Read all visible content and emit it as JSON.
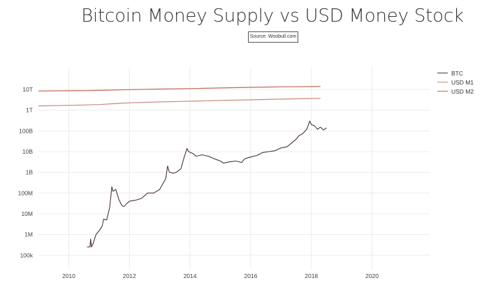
{
  "chart_data": {
    "type": "line",
    "title": "Bitcoin Money Supply vs USD Money Stock",
    "subtitle": "Source: Woobull.com",
    "xlabel": "",
    "ylabel": "",
    "y_scale": "log",
    "xlim": [
      2009,
      2021.9
    ],
    "ylim": [
      20000,
      120000000000000
    ],
    "x_ticks": [
      2010,
      2012,
      2014,
      2016,
      2018,
      2020
    ],
    "y_ticks": [
      {
        "value": 100000,
        "label": "100k"
      },
      {
        "value": 1000000,
        "label": "1M"
      },
      {
        "value": 10000000,
        "label": "10M"
      },
      {
        "value": 100000000,
        "label": "100M"
      },
      {
        "value": 1000000000,
        "label": "1B"
      },
      {
        "value": 10000000000,
        "label": "10B"
      },
      {
        "value": 100000000000,
        "label": "100B"
      },
      {
        "value": 1000000000000,
        "label": "1T"
      },
      {
        "value": 10000000000000,
        "label": "10T"
      }
    ],
    "grid": true,
    "legend_position": "top-right",
    "series": [
      {
        "name": "BTC",
        "color": "#4a3535",
        "x": [
          2010.6,
          2010.7,
          2010.72,
          2010.75,
          2010.8,
          2010.9,
          2011.0,
          2011.1,
          2011.15,
          2011.25,
          2011.35,
          2011.42,
          2011.46,
          2011.55,
          2011.65,
          2011.75,
          2011.82,
          2011.9,
          2012.0,
          2012.2,
          2012.4,
          2012.6,
          2012.8,
          2013.0,
          2013.2,
          2013.26,
          2013.32,
          2013.45,
          2013.55,
          2013.7,
          2013.8,
          2013.9,
          2013.95,
          2014.1,
          2014.2,
          2014.4,
          2014.6,
          2014.8,
          2015.0,
          2015.1,
          2015.3,
          2015.5,
          2015.7,
          2015.8,
          2016.0,
          2016.2,
          2016.4,
          2016.6,
          2016.8,
          2017.0,
          2017.2,
          2017.4,
          2017.5,
          2017.6,
          2017.7,
          2017.85,
          2017.95,
          2018.0,
          2018.1,
          2018.2,
          2018.3,
          2018.4,
          2018.5
        ],
        "values": [
          250000,
          250000,
          600000,
          250000,
          350000,
          1000000,
          1500000,
          2500000,
          5500000,
          5000000,
          20000000,
          200000000,
          120000000,
          150000000,
          50000000,
          25000000,
          22000000,
          30000000,
          40000000,
          45000000,
          55000000,
          100000000,
          100000000,
          150000000,
          500000000,
          2000000000,
          1000000000,
          900000000,
          1000000000,
          1500000000,
          5000000000,
          14000000000,
          10000000000,
          8000000000,
          6000000000,
          7000000000,
          6000000000,
          4500000000,
          3500000000,
          2800000000,
          3200000000,
          3500000000,
          3000000000,
          4500000000,
          5500000000,
          6500000000,
          9000000000,
          10000000000,
          11000000000,
          15000000000,
          17000000000,
          30000000000,
          40000000000,
          60000000000,
          70000000000,
          120000000000,
          300000000000,
          200000000000,
          180000000000,
          120000000000,
          150000000000,
          110000000000,
          140000000000
        ]
      },
      {
        "name": "USD M1",
        "color": "#c98a78",
        "x": [
          2009.0,
          2010.0,
          2011.0,
          2011.6,
          2012.0,
          2013.0,
          2014.0,
          2015.0,
          2016.0,
          2017.0,
          2018.0,
          2018.3
        ],
        "values": [
          1600000000000,
          1700000000000,
          1850000000000,
          2100000000000,
          2250000000000,
          2500000000000,
          2700000000000,
          2950000000000,
          3150000000000,
          3400000000000,
          3650000000000,
          3700000000000
        ]
      },
      {
        "name": "USD M2",
        "color": "#c06a55",
        "x": [
          2009.0,
          2010.0,
          2011.0,
          2012.0,
          2013.0,
          2014.0,
          2015.0,
          2016.0,
          2017.0,
          2018.0,
          2018.3
        ],
        "values": [
          8400000000000,
          8600000000000,
          9000000000000,
          9800000000000,
          10400000000000,
          11000000000000,
          11800000000000,
          12600000000000,
          13300000000000,
          13800000000000,
          14000000000000
        ]
      }
    ]
  }
}
